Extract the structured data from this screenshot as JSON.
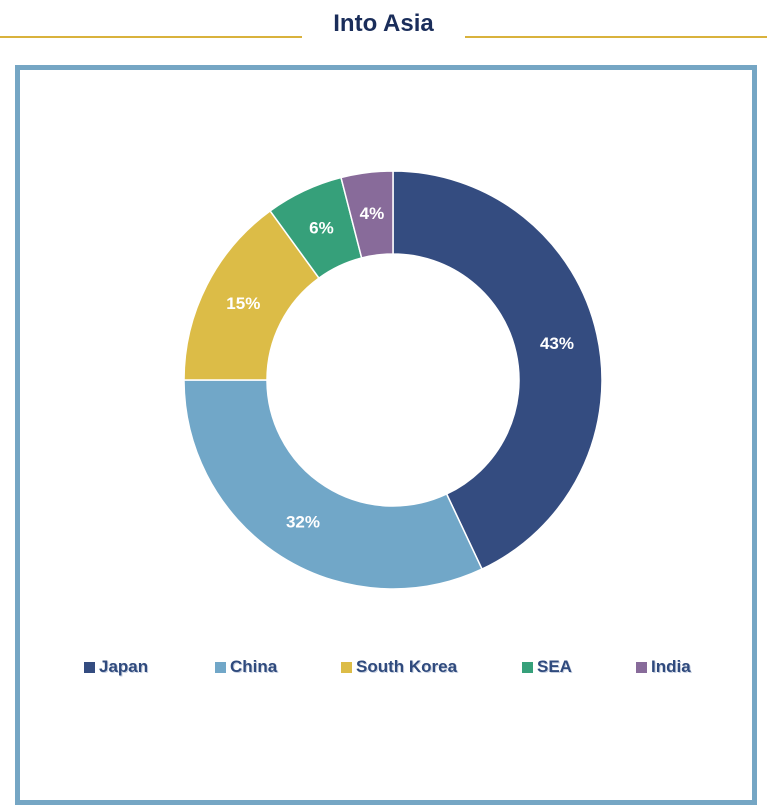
{
  "header": {
    "title": "Into Asia"
  },
  "colors": {
    "header_line": "#d9b23c",
    "frame_border": "#75a6c4",
    "title": "#1a2d5a"
  },
  "chart_data": {
    "type": "pie",
    "variant": "donut",
    "title": "",
    "legend_position": "bottom",
    "series": [
      {
        "name": "Japan",
        "value": 43,
        "label": "43%",
        "color": "#344c80"
      },
      {
        "name": "China",
        "value": 32,
        "label": "32%",
        "color": "#71a7c8"
      },
      {
        "name": "South Korea",
        "value": 15,
        "label": "15%",
        "color": "#dcbc47"
      },
      {
        "name": "SEA",
        "value": 6,
        "label": "6%",
        "color": "#36a07a"
      },
      {
        "name": "India",
        "value": 4,
        "label": "4%",
        "color": "#886b9a"
      }
    ]
  }
}
